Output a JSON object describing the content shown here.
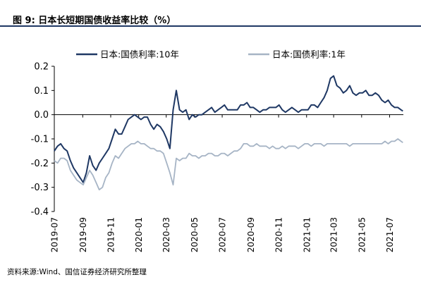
{
  "figure": {
    "title": "图 9:  日本长短期国债收益率比较（%）",
    "source": "资料来源:Wind、国信证券经济研究所整理"
  },
  "chart_data": {
    "type": "line",
    "title": "",
    "xlabel": "",
    "ylabel": "",
    "ylim": [
      -0.4,
      0.2
    ],
    "yticks": [
      "0.2",
      "0.1",
      "0.0",
      "-0.1",
      "-0.2",
      "-0.3",
      "-0.4"
    ],
    "yticks_values": [
      0.2,
      0.1,
      0.0,
      -0.1,
      -0.2,
      -0.3,
      -0.4
    ],
    "xlim": [
      "2019-07-01",
      "2021-07-31"
    ],
    "xticks": [
      "2019-07",
      "2019-09",
      "2019-11",
      "2020-01",
      "2020-03",
      "2020-05",
      "2020-07",
      "2020-09",
      "2020-11",
      "2021-01",
      "2021-03",
      "2021-05",
      "2021-07"
    ],
    "grid": false,
    "legend_position": "top",
    "series": [
      {
        "name": "日本:国债利率:10年",
        "color": "#1f3864",
        "points": [
          [
            "2019-07-01",
            -0.15
          ],
          [
            "2019-07-08",
            -0.13
          ],
          [
            "2019-07-15",
            -0.12
          ],
          [
            "2019-07-22",
            -0.14
          ],
          [
            "2019-07-29",
            -0.15
          ],
          [
            "2019-08-05",
            -0.19
          ],
          [
            "2019-08-12",
            -0.22
          ],
          [
            "2019-08-19",
            -0.24
          ],
          [
            "2019-08-26",
            -0.26
          ],
          [
            "2019-09-02",
            -0.28
          ],
          [
            "2019-09-09",
            -0.24
          ],
          [
            "2019-09-16",
            -0.17
          ],
          [
            "2019-09-23",
            -0.21
          ],
          [
            "2019-09-30",
            -0.23
          ],
          [
            "2019-10-07",
            -0.2
          ],
          [
            "2019-10-14",
            -0.18
          ],
          [
            "2019-10-21",
            -0.16
          ],
          [
            "2019-10-28",
            -0.14
          ],
          [
            "2019-11-04",
            -0.1
          ],
          [
            "2019-11-11",
            -0.06
          ],
          [
            "2019-11-18",
            -0.08
          ],
          [
            "2019-11-25",
            -0.08
          ],
          [
            "2019-12-02",
            -0.05
          ],
          [
            "2019-12-09",
            -0.02
          ],
          [
            "2019-12-16",
            -0.01
          ],
          [
            "2019-12-23",
            0.0
          ],
          [
            "2019-12-30",
            -0.01
          ],
          [
            "2020-01-06",
            -0.02
          ],
          [
            "2020-01-13",
            -0.01
          ],
          [
            "2020-01-20",
            -0.01
          ],
          [
            "2020-01-27",
            -0.04
          ],
          [
            "2020-02-03",
            -0.06
          ],
          [
            "2020-02-10",
            -0.04
          ],
          [
            "2020-02-17",
            -0.05
          ],
          [
            "2020-02-24",
            -0.07
          ],
          [
            "2020-03-02",
            -0.1
          ],
          [
            "2020-03-09",
            -0.14
          ],
          [
            "2020-03-16",
            0.02
          ],
          [
            "2020-03-23",
            0.1
          ],
          [
            "2020-03-30",
            0.02
          ],
          [
            "2020-04-06",
            0.01
          ],
          [
            "2020-04-13",
            0.02
          ],
          [
            "2020-04-20",
            -0.02
          ],
          [
            "2020-04-27",
            0.0
          ],
          [
            "2020-05-04",
            -0.01
          ],
          [
            "2020-05-11",
            0.0
          ],
          [
            "2020-05-18",
            0.0
          ],
          [
            "2020-05-25",
            0.01
          ],
          [
            "2020-06-01",
            0.02
          ],
          [
            "2020-06-08",
            0.03
          ],
          [
            "2020-06-15",
            0.01
          ],
          [
            "2020-06-22",
            0.02
          ],
          [
            "2020-06-29",
            0.03
          ],
          [
            "2020-07-06",
            0.04
          ],
          [
            "2020-07-13",
            0.02
          ],
          [
            "2020-07-20",
            0.02
          ],
          [
            "2020-07-27",
            0.02
          ],
          [
            "2020-08-03",
            0.02
          ],
          [
            "2020-08-10",
            0.04
          ],
          [
            "2020-08-17",
            0.04
          ],
          [
            "2020-08-24",
            0.05
          ],
          [
            "2020-08-31",
            0.03
          ],
          [
            "2020-09-07",
            0.03
          ],
          [
            "2020-09-14",
            0.02
          ],
          [
            "2020-09-21",
            0.01
          ],
          [
            "2020-09-28",
            0.02
          ],
          [
            "2020-10-05",
            0.02
          ],
          [
            "2020-10-12",
            0.03
          ],
          [
            "2020-10-19",
            0.03
          ],
          [
            "2020-10-26",
            0.03
          ],
          [
            "2020-11-02",
            0.04
          ],
          [
            "2020-11-09",
            0.02
          ],
          [
            "2020-11-16",
            0.01
          ],
          [
            "2020-11-23",
            0.02
          ],
          [
            "2020-11-30",
            0.03
          ],
          [
            "2020-12-07",
            0.02
          ],
          [
            "2020-12-14",
            0.01
          ],
          [
            "2020-12-21",
            0.02
          ],
          [
            "2020-12-28",
            0.02
          ],
          [
            "2021-01-04",
            0.02
          ],
          [
            "2021-01-11",
            0.04
          ],
          [
            "2021-01-18",
            0.04
          ],
          [
            "2021-01-25",
            0.03
          ],
          [
            "2021-02-01",
            0.05
          ],
          [
            "2021-02-08",
            0.07
          ],
          [
            "2021-02-15",
            0.1
          ],
          [
            "2021-02-22",
            0.15
          ],
          [
            "2021-03-01",
            0.16
          ],
          [
            "2021-03-08",
            0.12
          ],
          [
            "2021-03-15",
            0.11
          ],
          [
            "2021-03-22",
            0.09
          ],
          [
            "2021-03-29",
            0.1
          ],
          [
            "2021-04-05",
            0.12
          ],
          [
            "2021-04-12",
            0.09
          ],
          [
            "2021-04-19",
            0.08
          ],
          [
            "2021-04-26",
            0.09
          ],
          [
            "2021-05-03",
            0.09
          ],
          [
            "2021-05-10",
            0.1
          ],
          [
            "2021-05-17",
            0.08
          ],
          [
            "2021-05-24",
            0.08
          ],
          [
            "2021-05-31",
            0.09
          ],
          [
            "2021-06-07",
            0.08
          ],
          [
            "2021-06-14",
            0.06
          ],
          [
            "2021-06-21",
            0.05
          ],
          [
            "2021-06-28",
            0.06
          ],
          [
            "2021-07-05",
            0.04
          ],
          [
            "2021-07-12",
            0.03
          ],
          [
            "2021-07-19",
            0.03
          ],
          [
            "2021-07-26",
            0.02
          ],
          [
            "2021-07-30",
            0.015
          ]
        ]
      },
      {
        "name": "日本:国债利率:1年",
        "color": "#a6b4c5",
        "points": [
          [
            "2019-07-01",
            -0.19
          ],
          [
            "2019-07-08",
            -0.2
          ],
          [
            "2019-07-15",
            -0.18
          ],
          [
            "2019-07-22",
            -0.18
          ],
          [
            "2019-07-29",
            -0.19
          ],
          [
            "2019-08-05",
            -0.23
          ],
          [
            "2019-08-12",
            -0.25
          ],
          [
            "2019-08-19",
            -0.27
          ],
          [
            "2019-08-26",
            -0.28
          ],
          [
            "2019-09-02",
            -0.29
          ],
          [
            "2019-09-09",
            -0.26
          ],
          [
            "2019-09-16",
            -0.23
          ],
          [
            "2019-09-23",
            -0.25
          ],
          [
            "2019-09-30",
            -0.28
          ],
          [
            "2019-10-07",
            -0.31
          ],
          [
            "2019-10-14",
            -0.3
          ],
          [
            "2019-10-21",
            -0.26
          ],
          [
            "2019-10-28",
            -0.24
          ],
          [
            "2019-11-04",
            -0.2
          ],
          [
            "2019-11-11",
            -0.17
          ],
          [
            "2019-11-18",
            -0.18
          ],
          [
            "2019-11-25",
            -0.16
          ],
          [
            "2019-12-02",
            -0.14
          ],
          [
            "2019-12-09",
            -0.13
          ],
          [
            "2019-12-16",
            -0.12
          ],
          [
            "2019-12-23",
            -0.12
          ],
          [
            "2019-12-30",
            -0.11
          ],
          [
            "2020-01-06",
            -0.12
          ],
          [
            "2020-01-13",
            -0.12
          ],
          [
            "2020-01-20",
            -0.13
          ],
          [
            "2020-01-27",
            -0.14
          ],
          [
            "2020-02-03",
            -0.14
          ],
          [
            "2020-02-10",
            -0.15
          ],
          [
            "2020-02-17",
            -0.15
          ],
          [
            "2020-02-24",
            -0.16
          ],
          [
            "2020-03-02",
            -0.2
          ],
          [
            "2020-03-09",
            -0.24
          ],
          [
            "2020-03-16",
            -0.29
          ],
          [
            "2020-03-23",
            -0.18
          ],
          [
            "2020-03-30",
            -0.19
          ],
          [
            "2020-04-06",
            -0.18
          ],
          [
            "2020-04-13",
            -0.18
          ],
          [
            "2020-04-20",
            -0.16
          ],
          [
            "2020-04-27",
            -0.17
          ],
          [
            "2020-05-04",
            -0.17
          ],
          [
            "2020-05-11",
            -0.18
          ],
          [
            "2020-05-18",
            -0.17
          ],
          [
            "2020-05-25",
            -0.17
          ],
          [
            "2020-06-01",
            -0.16
          ],
          [
            "2020-06-08",
            -0.16
          ],
          [
            "2020-06-15",
            -0.17
          ],
          [
            "2020-06-22",
            -0.17
          ],
          [
            "2020-06-29",
            -0.16
          ],
          [
            "2020-07-06",
            -0.16
          ],
          [
            "2020-07-13",
            -0.17
          ],
          [
            "2020-07-20",
            -0.16
          ],
          [
            "2020-07-27",
            -0.15
          ],
          [
            "2020-08-03",
            -0.15
          ],
          [
            "2020-08-10",
            -0.14
          ],
          [
            "2020-08-17",
            -0.12
          ],
          [
            "2020-08-24",
            -0.12
          ],
          [
            "2020-08-31",
            -0.13
          ],
          [
            "2020-09-07",
            -0.13
          ],
          [
            "2020-09-14",
            -0.12
          ],
          [
            "2020-09-21",
            -0.13
          ],
          [
            "2020-09-28",
            -0.13
          ],
          [
            "2020-10-05",
            -0.13
          ],
          [
            "2020-10-12",
            -0.14
          ],
          [
            "2020-10-19",
            -0.13
          ],
          [
            "2020-10-26",
            -0.14
          ],
          [
            "2020-11-02",
            -0.14
          ],
          [
            "2020-11-09",
            -0.13
          ],
          [
            "2020-11-16",
            -0.14
          ],
          [
            "2020-11-23",
            -0.13
          ],
          [
            "2020-11-30",
            -0.13
          ],
          [
            "2020-12-07",
            -0.13
          ],
          [
            "2020-12-14",
            -0.14
          ],
          [
            "2020-12-21",
            -0.13
          ],
          [
            "2020-12-28",
            -0.12
          ],
          [
            "2021-01-04",
            -0.12
          ],
          [
            "2021-01-11",
            -0.13
          ],
          [
            "2021-01-18",
            -0.12
          ],
          [
            "2021-01-25",
            -0.12
          ],
          [
            "2021-02-01",
            -0.12
          ],
          [
            "2021-02-08",
            -0.13
          ],
          [
            "2021-02-15",
            -0.12
          ],
          [
            "2021-02-22",
            -0.12
          ],
          [
            "2021-03-01",
            -0.12
          ],
          [
            "2021-03-08",
            -0.12
          ],
          [
            "2021-03-15",
            -0.12
          ],
          [
            "2021-03-22",
            -0.12
          ],
          [
            "2021-03-29",
            -0.12
          ],
          [
            "2021-04-05",
            -0.13
          ],
          [
            "2021-04-12",
            -0.12
          ],
          [
            "2021-04-19",
            -0.12
          ],
          [
            "2021-04-26",
            -0.12
          ],
          [
            "2021-05-03",
            -0.12
          ],
          [
            "2021-05-10",
            -0.12
          ],
          [
            "2021-05-17",
            -0.12
          ],
          [
            "2021-05-24",
            -0.12
          ],
          [
            "2021-05-31",
            -0.12
          ],
          [
            "2021-06-07",
            -0.12
          ],
          [
            "2021-06-14",
            -0.12
          ],
          [
            "2021-06-21",
            -0.11
          ],
          [
            "2021-06-28",
            -0.12
          ],
          [
            "2021-07-05",
            -0.11
          ],
          [
            "2021-07-12",
            -0.11
          ],
          [
            "2021-07-19",
            -0.1
          ],
          [
            "2021-07-26",
            -0.11
          ],
          [
            "2021-07-30",
            -0.115
          ]
        ]
      }
    ]
  }
}
